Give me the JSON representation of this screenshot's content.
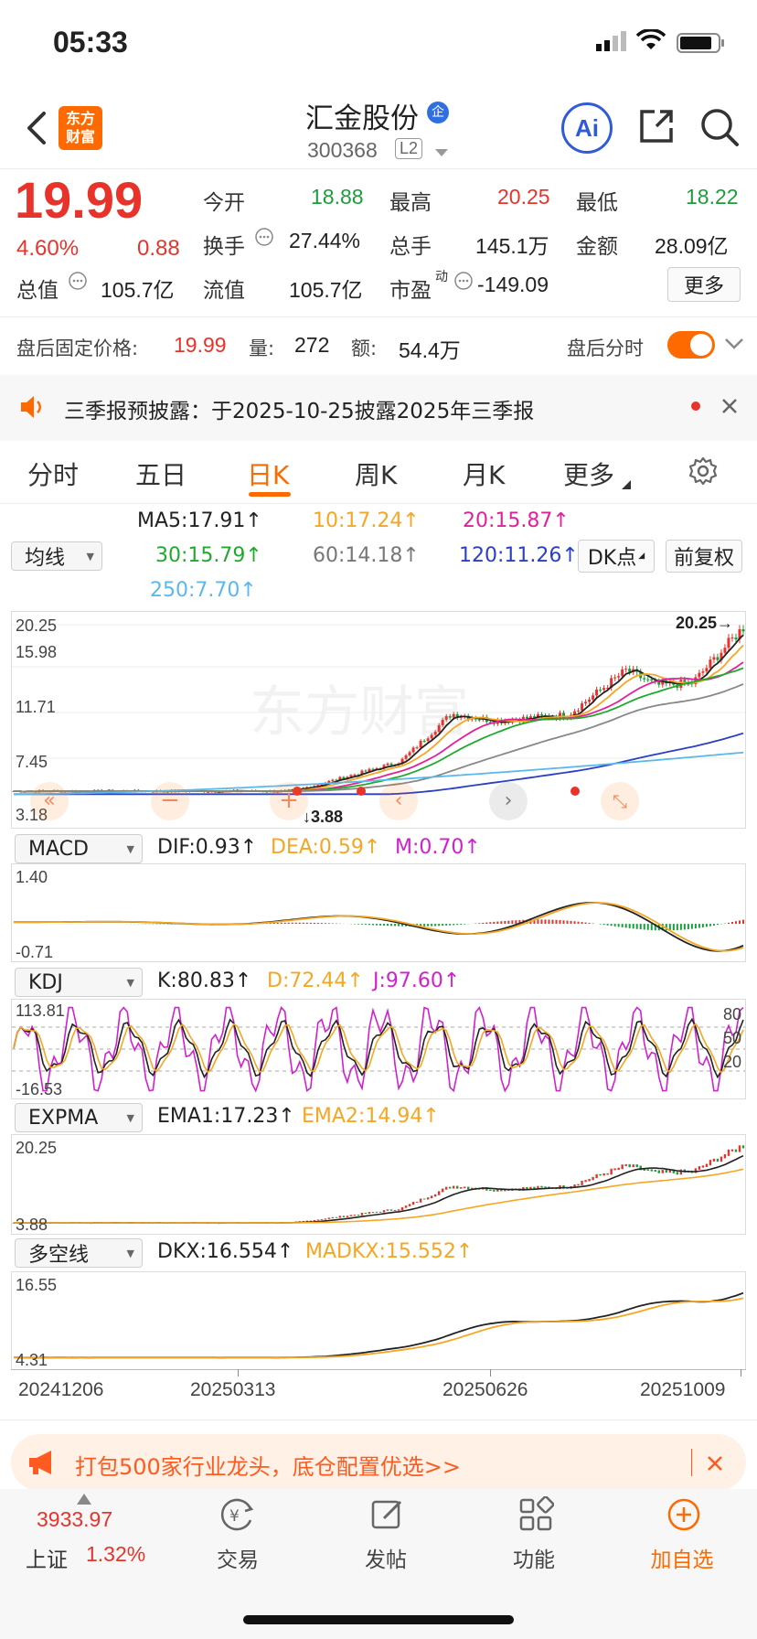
{
  "status_bar": {
    "time": "05:33"
  },
  "header": {
    "logo_line1": "东方",
    "logo_line2": "财富",
    "stock_name": "汇金股份",
    "badge": "企",
    "stock_code": "300368",
    "level": "L2",
    "ai_label": "Ai"
  },
  "quote": {
    "price": "19.99",
    "change_pct": "4.60%",
    "change_amt": "0.88",
    "open_label": "今开",
    "open": "18.88",
    "high_label": "最高",
    "high": "20.25",
    "low_label": "最低",
    "low": "18.22",
    "turnover_label": "换手",
    "turnover": "27.44%",
    "volume_label": "总手",
    "volume": "145.1万",
    "amount_label": "金额",
    "amount": "28.09亿",
    "mktcap_label": "总值",
    "mktcap": "105.7亿",
    "float_label": "流值",
    "float": "105.7亿",
    "pe_label": "市盈",
    "pe_sup": "动",
    "pe": "-149.09",
    "more_button": "更多"
  },
  "after_hours": {
    "label": "盘后固定价格:",
    "price": "19.99",
    "vol_label": "量:",
    "vol": "272",
    "amt_label": "额:",
    "amt": "54.4万",
    "toggle_label": "盘后分时"
  },
  "notice": {
    "text": "三季报预披露：于2025-10-25披露2025年三季报"
  },
  "tabs": [
    "分时",
    "五日",
    "日K",
    "周K",
    "月K",
    "更多"
  ],
  "active_tab_index": 2,
  "ma": {
    "selector": "均线",
    "ma5": "MA5:17.91",
    "ma10": "10:17.24",
    "ma20": "20:15.87",
    "ma30": "30:15.79",
    "ma60": "60:14.18",
    "ma120": "120:11.26",
    "ma250": "250:7.70",
    "dk_button": "DK点",
    "adjust_button": "前复权"
  },
  "main_chart": {
    "y_ticks": [
      "20.25",
      "15.98",
      "11.71",
      "7.45",
      "3.18"
    ],
    "high_label": "20.25",
    "low_label": "3.88",
    "watermark": "东方财富"
  },
  "macd": {
    "selector": "MACD",
    "dif": "DIF:0.93",
    "dea": "DEA:0.59",
    "m": "M:0.70",
    "y_top": "1.40",
    "y_bottom": "-0.71"
  },
  "kdj": {
    "selector": "KDJ",
    "k": "K:80.83",
    "d": "D:72.44",
    "j": "J:97.60",
    "y_top": "113.81",
    "y_bottom": "-16.53",
    "r80": "80",
    "r50": "50",
    "r20": "20"
  },
  "expma": {
    "selector": "EXPMA",
    "ema1": "EMA1:17.23",
    "ema2": "EMA2:14.94",
    "y_top": "20.25",
    "y_bottom": "3.88"
  },
  "dkx": {
    "selector": "多空线",
    "dkx": "DKX:16.554",
    "madkx": "MADKX:15.552",
    "y_top": "16.55",
    "y_bottom": "4.31"
  },
  "x_dates": [
    "20241206",
    "20250313",
    "20250626",
    "20251009"
  ],
  "ad_banner": {
    "text": "打包500家行业龙头，底仓配置优选>>"
  },
  "bottom_nav": {
    "index_value": "3933.97",
    "index_name": "上证",
    "index_change": "1.32%",
    "trade": "交易",
    "post": "发帖",
    "functions": "功能",
    "add_watch": "加自选"
  },
  "colors": {
    "up": "#e8332b",
    "down": "#1b9e3a",
    "accent": "#ff6a00",
    "ai_blue": "#2f5bd6",
    "ma5": "#222222",
    "ma10": "#f5a623",
    "ma20": "#e0219a",
    "ma30": "#1faa2e",
    "ma60": "#888888",
    "ma120": "#2b3fc4",
    "ma250": "#5bb8ec"
  }
}
